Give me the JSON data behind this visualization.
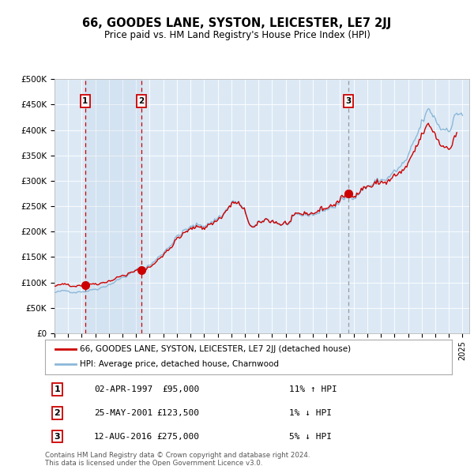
{
  "title": "66, GOODES LANE, SYSTON, LEICESTER, LE7 2JJ",
  "subtitle": "Price paid vs. HM Land Registry's House Price Index (HPI)",
  "background_color": "#dce9f5",
  "plot_bg_color": "#dce9f5",
  "hpi_color": "#8cb8d8",
  "price_color": "#cc0000",
  "sale_marker_color": "#cc0000",
  "vline_color_red": "#cc0000",
  "vline_color_grey": "#888888",
  "ylim": [
    0,
    500000
  ],
  "yticks": [
    0,
    50000,
    100000,
    150000,
    200000,
    250000,
    300000,
    350000,
    400000,
    450000,
    500000
  ],
  "ytick_labels": [
    "£0",
    "£50K",
    "£100K",
    "£150K",
    "£200K",
    "£250K",
    "£300K",
    "£350K",
    "£400K",
    "£450K",
    "£500K"
  ],
  "sale_dates": [
    1997.25,
    2001.4,
    2016.6
  ],
  "sale_prices": [
    95000,
    123500,
    275000
  ],
  "sale_labels": [
    "1",
    "2",
    "3"
  ],
  "legend_line1": "66, GOODES LANE, SYSTON, LEICESTER, LE7 2JJ (detached house)",
  "legend_line2": "HPI: Average price, detached house, Charnwood",
  "table_data": [
    [
      "1",
      "02-APR-1997",
      "£95,000",
      "11% ↑ HPI"
    ],
    [
      "2",
      "25-MAY-2001",
      "£123,500",
      "1% ↓ HPI"
    ],
    [
      "3",
      "12-AUG-2016",
      "£275,000",
      "5% ↓ HPI"
    ]
  ],
  "footnote": "Contains HM Land Registry data © Crown copyright and database right 2024.\nThis data is licensed under the Open Government Licence v3.0."
}
